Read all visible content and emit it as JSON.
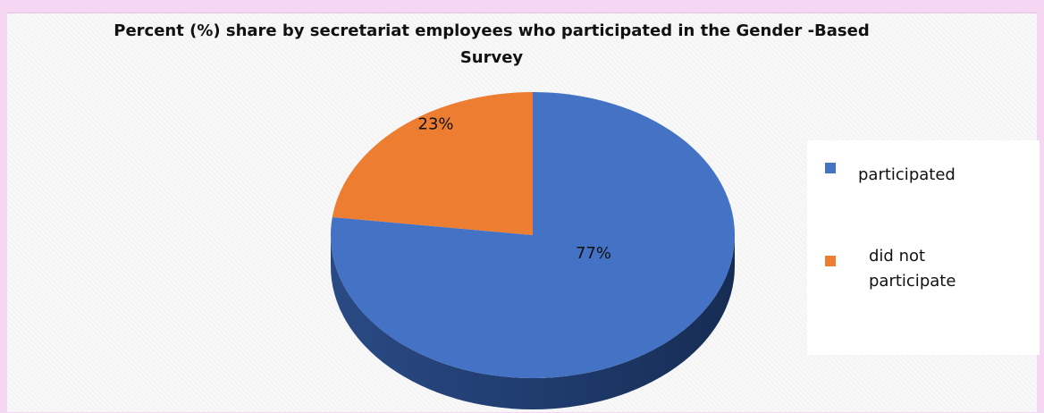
{
  "chart_data": {
    "type": "pie",
    "title": "Percent (%) share by secretariat employees who participated in the Gender -Based Survey",
    "categories": [
      "participated",
      "did not participate"
    ],
    "values": [
      77,
      23
    ],
    "data_labels": [
      "77%",
      "23%"
    ],
    "colors": [
      "#4472c4",
      "#ed7d31"
    ],
    "legend_placement": "right",
    "style": "3d-pie"
  }
}
